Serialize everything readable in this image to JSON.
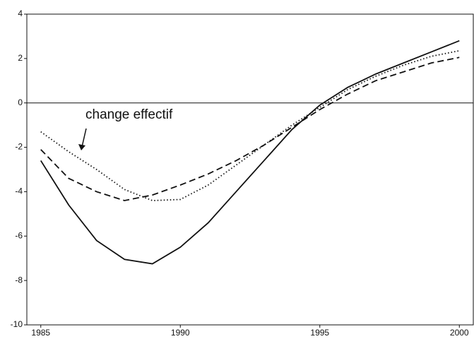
{
  "chart_data": {
    "type": "line",
    "annotation": "change effectif",
    "x": [
      1985,
      1986,
      1987,
      1988,
      1989,
      1990,
      1991,
      1992,
      1993,
      1994,
      1995,
      1996,
      1997,
      1998,
      1999,
      2000
    ],
    "series": [
      {
        "color": "#111111",
        "style": "solid",
        "values": [
          -2.6,
          -4.6,
          -6.2,
          -7.05,
          -7.25,
          -6.5,
          -5.4,
          -4.0,
          -2.6,
          -1.2,
          -0.1,
          0.7,
          1.3,
          1.8,
          2.3,
          2.8
        ]
      },
      {
        "color": "#111111",
        "style": "dotted",
        "values": [
          -1.3,
          -2.2,
          -3.0,
          -3.9,
          -4.4,
          -4.35,
          -3.7,
          -2.8,
          -1.9,
          -1.0,
          -0.2,
          0.6,
          1.2,
          1.7,
          2.1,
          2.35
        ]
      },
      {
        "color": "#111111",
        "style": "dashed",
        "values": [
          -2.1,
          -3.4,
          -4.0,
          -4.4,
          -4.15,
          -3.7,
          -3.2,
          -2.6,
          -1.9,
          -1.1,
          -0.3,
          0.4,
          1.0,
          1.4,
          1.8,
          2.05
        ]
      }
    ],
    "xlim": [
      1984.5,
      2000.5
    ],
    "xticks": [
      1985,
      1990,
      1995,
      2000
    ],
    "ylim": [
      -10,
      4
    ],
    "yticks": [
      -10,
      -8,
      -6,
      -4,
      -2,
      0,
      2,
      4
    ],
    "reference_line": 0,
    "grid": false
  }
}
